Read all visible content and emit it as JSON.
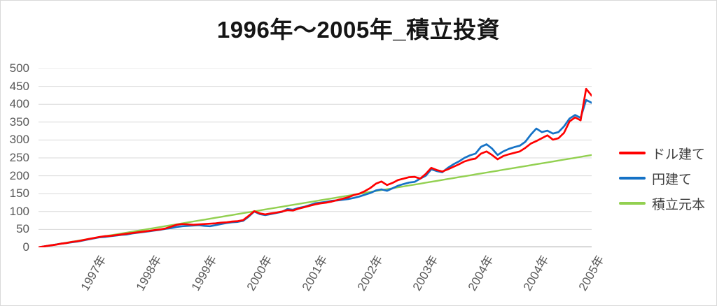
{
  "title": "1996年〜2005年_積立投資",
  "colors": {
    "red": "#ff0000",
    "blue": "#1572c6",
    "green": "#92d050",
    "grid": "#d9d9d9",
    "axis": "#bfbfbf",
    "tick_text": "#595959",
    "legend_text": "#3f3f3f"
  },
  "legend": {
    "items": [
      {
        "label": "ドル建て",
        "color": "#ff0000"
      },
      {
        "label": "円建て",
        "color": "#1572c6"
      },
      {
        "label": "積立元本",
        "color": "#92d050"
      }
    ]
  },
  "chart_data": {
    "type": "line",
    "title": "1996年〜2005年_積立投資",
    "xlabel": "",
    "ylabel": "",
    "ylim": [
      0,
      500
    ],
    "y_ticks": [
      0,
      50,
      100,
      150,
      200,
      250,
      300,
      350,
      400,
      450,
      500
    ],
    "y_tick_labels": [
      "0",
      "50",
      "100",
      "150",
      "200",
      "250",
      "300",
      "350",
      "400",
      "450",
      "500"
    ],
    "x_index_range": [
      0,
      100
    ],
    "x_tick_positions": [
      10,
      20,
      30,
      40,
      50,
      60,
      70,
      80,
      90,
      100
    ],
    "x_tick_labels": [
      "1997年",
      "1998年",
      "1999年",
      "2000年",
      "2001年",
      "2002年",
      "2003年",
      "2004年",
      "2004年",
      "2005年"
    ],
    "grid": true,
    "legend_position": "right",
    "series": [
      {
        "name": "積立元本",
        "color": "#92d050",
        "linear": [
          0,
          258
        ]
      },
      {
        "name": "円建て",
        "color": "#1572c6",
        "values": [
          0,
          2.5,
          5,
          7.5,
          10,
          12,
          14,
          16,
          19,
          22,
          25,
          28,
          29,
          31,
          33,
          35,
          36,
          39,
          41,
          43,
          45,
          47,
          49,
          52,
          54,
          57,
          59,
          60,
          61,
          62,
          60,
          59,
          62,
          65,
          68,
          70,
          71,
          74,
          86,
          100,
          93,
          90,
          93,
          96,
          99,
          107,
          105,
          110,
          113,
          118,
          123,
          125,
          127,
          130,
          131,
          133,
          135,
          138,
          142,
          147,
          152,
          159,
          162,
          158,
          165,
          172,
          177,
          181,
          183,
          192,
          200,
          218,
          213,
          210,
          222,
          232,
          240,
          250,
          257,
          262,
          281,
          288,
          276,
          258,
          268,
          275,
          280,
          284,
          295,
          315,
          332,
          322,
          326,
          318,
          322,
          338,
          360,
          370,
          362,
          412,
          404
        ]
      },
      {
        "name": "ドル建て",
        "color": "#ff0000",
        "values": [
          0,
          2.5,
          5,
          7,
          10,
          12,
          15,
          17,
          20,
          23,
          26,
          29,
          31,
          32,
          34,
          36,
          38,
          40,
          42,
          44,
          46,
          48,
          50,
          53,
          58,
          63,
          65,
          64,
          63,
          64,
          65,
          66,
          67,
          69,
          70,
          72,
          73,
          76,
          88,
          101,
          95,
          92,
          95,
          97,
          100,
          104,
          103,
          108,
          112,
          116,
          120,
          123,
          125,
          128,
          132,
          136,
          140,
          146,
          150,
          157,
          166,
          178,
          184,
          174,
          180,
          188,
          192,
          196,
          197,
          192,
          205,
          222,
          216,
          212,
          218,
          225,
          232,
          240,
          245,
          248,
          262,
          268,
          258,
          246,
          255,
          260,
          264,
          268,
          278,
          290,
          297,
          305,
          313,
          301,
          305,
          320,
          352,
          363,
          355,
          443,
          424
        ]
      }
    ]
  }
}
